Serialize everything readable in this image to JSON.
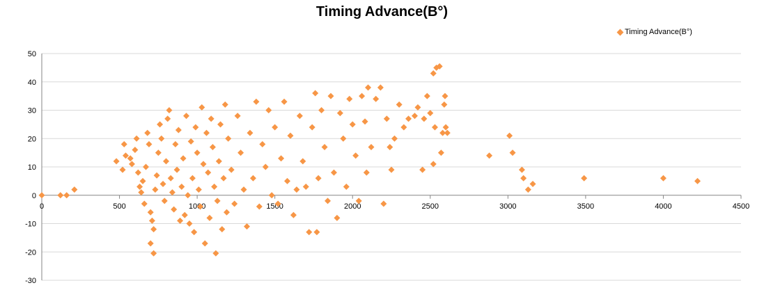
{
  "chart_data": {
    "type": "scatter",
    "title": "Timing Advance(B°)",
    "xlabel": "",
    "ylabel": "",
    "xlim": [
      0,
      4500
    ],
    "ylim": [
      -30,
      50
    ],
    "x_ticks": [
      0,
      500,
      1000,
      1500,
      2000,
      2500,
      3000,
      3500,
      4000,
      4500
    ],
    "y_ticks": [
      -30,
      -20,
      -10,
      0,
      10,
      20,
      30,
      40,
      50
    ],
    "grid": "horizontal",
    "legend": "top-right",
    "marker_color": "#f79646",
    "series": [
      {
        "name": "Timing Advance(B°)",
        "marker": "diamond",
        "points": [
          [
            0,
            0
          ],
          [
            120,
            0
          ],
          [
            160,
            0
          ],
          [
            210,
            2
          ],
          [
            480,
            12
          ],
          [
            520,
            9
          ],
          [
            530,
            18
          ],
          [
            540,
            14
          ],
          [
            570,
            13
          ],
          [
            580,
            11
          ],
          [
            600,
            16
          ],
          [
            610,
            20
          ],
          [
            620,
            8
          ],
          [
            630,
            3
          ],
          [
            640,
            1
          ],
          [
            650,
            5
          ],
          [
            660,
            -3
          ],
          [
            670,
            10
          ],
          [
            680,
            22
          ],
          [
            690,
            18
          ],
          [
            700,
            -6
          ],
          [
            700,
            -17
          ],
          [
            710,
            -9
          ],
          [
            720,
            -12
          ],
          [
            720,
            -20.5
          ],
          [
            730,
            2
          ],
          [
            740,
            7
          ],
          [
            750,
            15
          ],
          [
            760,
            25
          ],
          [
            770,
            20
          ],
          [
            780,
            4
          ],
          [
            790,
            -2
          ],
          [
            800,
            12
          ],
          [
            810,
            27
          ],
          [
            820,
            30
          ],
          [
            830,
            6
          ],
          [
            840,
            1
          ],
          [
            850,
            -5
          ],
          [
            860,
            18
          ],
          [
            870,
            9
          ],
          [
            880,
            23
          ],
          [
            890,
            -9
          ],
          [
            900,
            3
          ],
          [
            910,
            13
          ],
          [
            920,
            -7
          ],
          [
            930,
            28
          ],
          [
            940,
            0
          ],
          [
            950,
            -10
          ],
          [
            960,
            19
          ],
          [
            970,
            6
          ],
          [
            980,
            -13
          ],
          [
            990,
            24
          ],
          [
            1000,
            15
          ],
          [
            1010,
            2
          ],
          [
            1020,
            -4
          ],
          [
            1030,
            31
          ],
          [
            1040,
            11
          ],
          [
            1050,
            -17
          ],
          [
            1060,
            22
          ],
          [
            1070,
            8
          ],
          [
            1080,
            -8
          ],
          [
            1090,
            27
          ],
          [
            1100,
            17
          ],
          [
            1110,
            3
          ],
          [
            1120,
            -20.5
          ],
          [
            1130,
            -2
          ],
          [
            1140,
            12
          ],
          [
            1150,
            25
          ],
          [
            1160,
            -12
          ],
          [
            1170,
            6
          ],
          [
            1180,
            32
          ],
          [
            1190,
            -6
          ],
          [
            1200,
            20
          ],
          [
            1220,
            9
          ],
          [
            1240,
            -3
          ],
          [
            1260,
            28
          ],
          [
            1280,
            15
          ],
          [
            1300,
            2
          ],
          [
            1320,
            -11
          ],
          [
            1340,
            22
          ],
          [
            1360,
            6
          ],
          [
            1380,
            33
          ],
          [
            1400,
            -4
          ],
          [
            1420,
            18
          ],
          [
            1440,
            10
          ],
          [
            1460,
            30
          ],
          [
            1480,
            0
          ],
          [
            1500,
            24
          ],
          [
            1520,
            -3
          ],
          [
            1540,
            13
          ],
          [
            1560,
            33
          ],
          [
            1580,
            5
          ],
          [
            1600,
            21
          ],
          [
            1620,
            -7
          ],
          [
            1640,
            2
          ],
          [
            1660,
            28
          ],
          [
            1680,
            12
          ],
          [
            1700,
            3
          ],
          [
            1720,
            -13
          ],
          [
            1740,
            24
          ],
          [
            1760,
            36
          ],
          [
            1770,
            -13
          ],
          [
            1780,
            6
          ],
          [
            1800,
            30
          ],
          [
            1820,
            17
          ],
          [
            1840,
            -2
          ],
          [
            1860,
            35
          ],
          [
            1880,
            8
          ],
          [
            1900,
            -8
          ],
          [
            1920,
            29
          ],
          [
            1940,
            20
          ],
          [
            1960,
            3
          ],
          [
            1980,
            34
          ],
          [
            2000,
            25
          ],
          [
            2020,
            14
          ],
          [
            2040,
            -2
          ],
          [
            2060,
            35
          ],
          [
            2080,
            26
          ],
          [
            2090,
            8
          ],
          [
            2100,
            38
          ],
          [
            2120,
            17
          ],
          [
            2150,
            34
          ],
          [
            2180,
            38
          ],
          [
            2200,
            -3
          ],
          [
            2220,
            27
          ],
          [
            2240,
            17
          ],
          [
            2250,
            9
          ],
          [
            2270,
            20
          ],
          [
            2300,
            32
          ],
          [
            2330,
            24
          ],
          [
            2360,
            27
          ],
          [
            2400,
            28
          ],
          [
            2420,
            31
          ],
          [
            2450,
            9
          ],
          [
            2460,
            27
          ],
          [
            2480,
            35
          ],
          [
            2500,
            29
          ],
          [
            2520,
            11
          ],
          [
            2530,
            24
          ],
          [
            2520,
            43
          ],
          [
            2540,
            45
          ],
          [
            2560,
            45.5
          ],
          [
            2570,
            15
          ],
          [
            2580,
            22
          ],
          [
            2590,
            32
          ],
          [
            2595,
            35
          ],
          [
            2600,
            24
          ],
          [
            2610,
            22
          ],
          [
            2880,
            14
          ],
          [
            3010,
            21
          ],
          [
            3030,
            15
          ],
          [
            3090,
            9
          ],
          [
            3100,
            6
          ],
          [
            3130,
            2
          ],
          [
            3160,
            4
          ],
          [
            3490,
            6
          ],
          [
            4000,
            6
          ],
          [
            4220,
            5
          ]
        ]
      }
    ]
  }
}
